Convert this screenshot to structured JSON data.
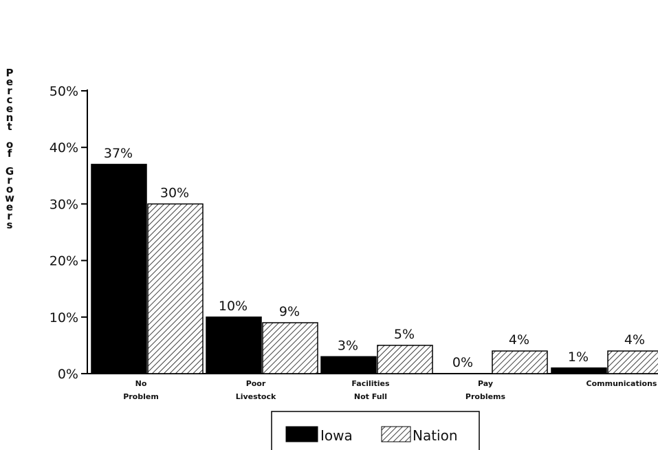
{
  "chart_data": {
    "type": "bar",
    "title": "",
    "xlabel": "",
    "ylabel": "Percent of Growers",
    "ylim": [
      0,
      50
    ],
    "yticks": [
      "0%",
      "10%",
      "20%",
      "30%",
      "40%",
      "50%"
    ],
    "categories": [
      [
        "No",
        "Problem"
      ],
      [
        "Poor",
        "Livestock"
      ],
      [
        "Facilities",
        "Not Full"
      ],
      [
        "Pay",
        "Problems"
      ],
      [
        "Communications",
        ""
      ]
    ],
    "series": [
      {
        "name": "Iowa",
        "values": [
          37,
          10,
          3,
          0,
          1
        ],
        "labels": [
          "37%",
          "10%",
          "3%",
          "0%",
          "1%"
        ],
        "fill": "#000000"
      },
      {
        "name": "Nation",
        "values": [
          30,
          9,
          5,
          4,
          4
        ],
        "labels": [
          "30%",
          "9%",
          "5%",
          "4%",
          "4%"
        ],
        "fill": "hatch"
      }
    ],
    "grid": false,
    "legend": "bottom-center"
  }
}
